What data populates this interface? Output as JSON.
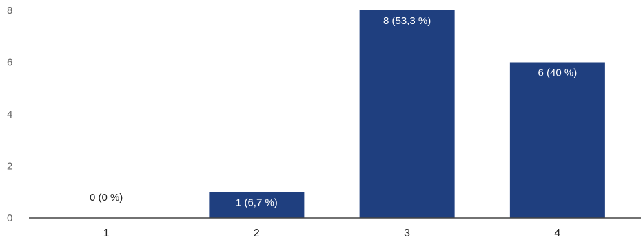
{
  "chart_data": {
    "type": "bar",
    "categories": [
      "1",
      "2",
      "3",
      "4"
    ],
    "values": [
      0,
      1,
      8,
      6
    ],
    "data_labels": [
      "0 (0 %)",
      "1 (6,7 %)",
      "8 (53,3 %)",
      "6 (40 %)"
    ],
    "y_ticks": [
      "0",
      "2",
      "4",
      "6",
      "8"
    ],
    "ylim": [
      0,
      8
    ],
    "grid": false,
    "bar_color": "#1f3f7f",
    "label_color_inside": "#ffffff",
    "label_color_outside": "#222222",
    "axis_color": "#444444"
  }
}
